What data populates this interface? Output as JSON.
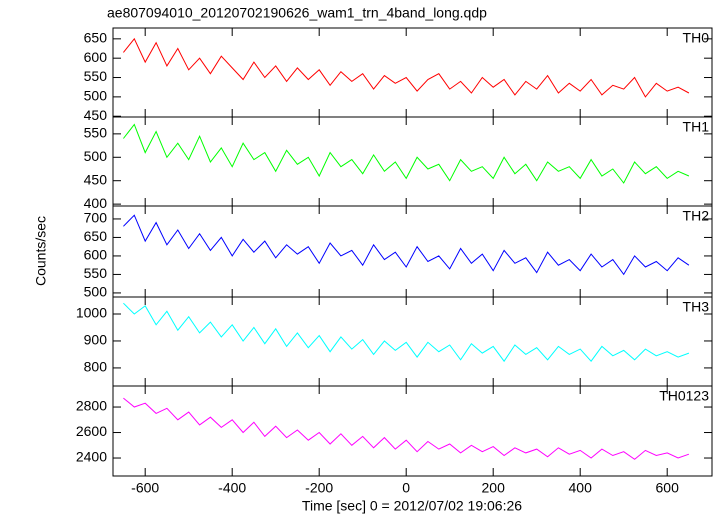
{
  "chart_data": {
    "type": "line",
    "title": "ae807094010_20120702190626_wam1_trn_4band_long.qdp",
    "xlabel": "Time [sec] 0 = 2012/07/02 19:06:26",
    "ylabel": "Counts/sec",
    "xlim": [
      -674,
      703
    ],
    "xticks": [
      -600,
      -400,
      -200,
      0,
      200,
      400,
      600
    ],
    "x": [
      -650,
      -625,
      -600,
      -575,
      -550,
      -525,
      -500,
      -475,
      -450,
      -425,
      -400,
      -375,
      -350,
      -325,
      -300,
      -275,
      -250,
      -225,
      -200,
      -175,
      -150,
      -125,
      -100,
      -75,
      -50,
      -25,
      0,
      25,
      50,
      75,
      100,
      125,
      150,
      175,
      200,
      225,
      250,
      275,
      300,
      325,
      350,
      375,
      400,
      425,
      450,
      475,
      500,
      525,
      550,
      575,
      600,
      625,
      650
    ],
    "panels": [
      {
        "name": "TH0",
        "color": "#ff0000",
        "ylim": [
          448,
          678
        ],
        "yticks": [
          450,
          500,
          550,
          600,
          650
        ],
        "values": [
          615,
          650,
          590,
          640,
          580,
          625,
          570,
          600,
          560,
          605,
          575,
          545,
          590,
          550,
          580,
          540,
          575,
          545,
          570,
          530,
          565,
          540,
          560,
          520,
          555,
          535,
          550,
          515,
          545,
          560,
          520,
          540,
          510,
          550,
          525,
          545,
          505,
          540,
          520,
          555,
          510,
          535,
          515,
          545,
          505,
          530,
          520,
          550,
          500,
          535,
          515,
          525,
          510
        ]
      },
      {
        "name": "TH1",
        "color": "#00ff00",
        "ylim": [
          396,
          586
        ],
        "yticks": [
          400,
          450,
          500,
          550
        ],
        "values": [
          540,
          570,
          510,
          555,
          500,
          530,
          495,
          545,
          490,
          520,
          480,
          530,
          495,
          510,
          470,
          515,
          485,
          500,
          460,
          510,
          480,
          495,
          465,
          505,
          470,
          490,
          455,
          500,
          475,
          485,
          450,
          495,
          470,
          480,
          455,
          500,
          465,
          485,
          450,
          490,
          470,
          480,
          455,
          495,
          460,
          475,
          445,
          490,
          465,
          480,
          455,
          470,
          460
        ]
      },
      {
        "name": "TH2",
        "color": "#0000ff",
        "ylim": [
          489,
          735
        ],
        "yticks": [
          500,
          550,
          600,
          650,
          700
        ],
        "values": [
          680,
          710,
          640,
          690,
          630,
          670,
          620,
          660,
          615,
          650,
          600,
          645,
          610,
          640,
          595,
          630,
          605,
          625,
          580,
          635,
          600,
          615,
          575,
          630,
          590,
          610,
          570,
          625,
          585,
          600,
          565,
          620,
          580,
          605,
          560,
          615,
          580,
          595,
          555,
          610,
          575,
          590,
          560,
          605,
          570,
          590,
          550,
          600,
          570,
          585,
          560,
          595,
          575
        ]
      },
      {
        "name": "TH3",
        "color": "#00ffff",
        "ylim": [
          733,
          1063
        ],
        "yticks": [
          800,
          900,
          1000
        ],
        "values": [
          1040,
          1000,
          1030,
          960,
          1010,
          940,
          990,
          930,
          970,
          915,
          960,
          900,
          950,
          890,
          945,
          880,
          930,
          875,
          920,
          860,
          915,
          870,
          905,
          850,
          900,
          865,
          895,
          840,
          895,
          860,
          885,
          830,
          890,
          855,
          880,
          825,
          885,
          850,
          875,
          830,
          880,
          850,
          870,
          825,
          880,
          845,
          865,
          830,
          870,
          845,
          860,
          840,
          855
        ]
      },
      {
        "name": "TH0123",
        "color": "#ff00ff",
        "ylim": [
          2259,
          2965
        ],
        "yticks": [
          2400,
          2600,
          2800
        ],
        "values": [
          2870,
          2800,
          2830,
          2750,
          2790,
          2700,
          2760,
          2660,
          2720,
          2640,
          2700,
          2600,
          2680,
          2570,
          2650,
          2560,
          2620,
          2540,
          2600,
          2510,
          2590,
          2500,
          2570,
          2480,
          2560,
          2470,
          2540,
          2450,
          2530,
          2470,
          2510,
          2440,
          2500,
          2450,
          2490,
          2420,
          2480,
          2440,
          2470,
          2410,
          2480,
          2430,
          2460,
          2400,
          2470,
          2420,
          2450,
          2390,
          2460,
          2420,
          2440,
          2400,
          2430
        ]
      }
    ]
  }
}
